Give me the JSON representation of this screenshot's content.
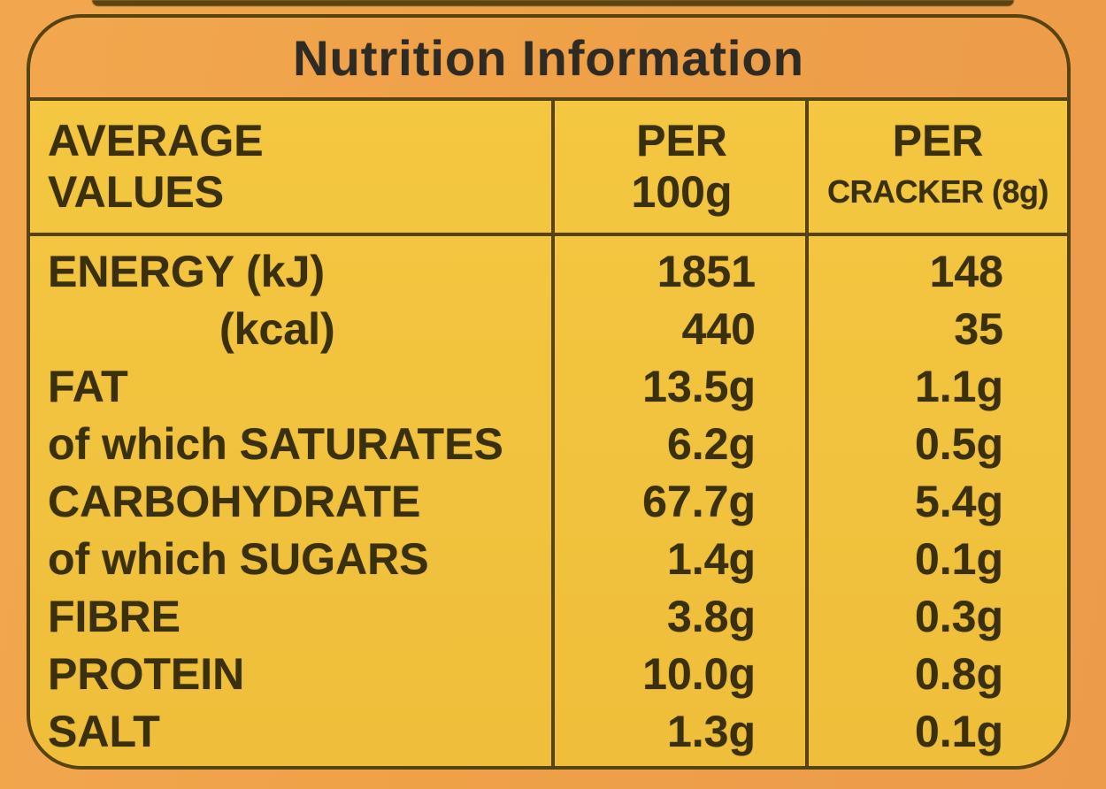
{
  "colors": {
    "background_orange": "#efa148",
    "panel_yellow": "#f2c33f",
    "rule_dark_olive": "#57430f",
    "table_text": "#3a300e",
    "title_text": "#2e2a24"
  },
  "label": {
    "title": "Nutrition Information",
    "table": {
      "header": {
        "values_line1": "AVERAGE",
        "values_line2": "VALUES",
        "per100_line1": "PER",
        "per100_line2": "100g",
        "percracker_line1": "PER",
        "percracker_line2": "CRACKER (8g)"
      },
      "rows": [
        {
          "label": "ENERGY (kJ)",
          "per_100g": "1851",
          "per_cracker": "148",
          "indent": false
        },
        {
          "label": "(kcal)",
          "per_100g": "440",
          "per_cracker": "35",
          "indent": true
        },
        {
          "label": "FAT",
          "per_100g": "13.5g",
          "per_cracker": "1.1g",
          "indent": false
        },
        {
          "label": "of which SATURATES",
          "per_100g": "6.2g",
          "per_cracker": "0.5g",
          "indent": false
        },
        {
          "label": "CARBOHYDRATE",
          "per_100g": "67.7g",
          "per_cracker": "5.4g",
          "indent": false
        },
        {
          "label": "of which SUGARS",
          "per_100g": "1.4g",
          "per_cracker": "0.1g",
          "indent": false
        },
        {
          "label": "FIBRE",
          "per_100g": "3.8g",
          "per_cracker": "0.3g",
          "indent": false
        },
        {
          "label": "PROTEIN",
          "per_100g": "10.0g",
          "per_cracker": "0.8g",
          "indent": false
        },
        {
          "label": "SALT",
          "per_100g": "1.3g",
          "per_cracker": "0.1g",
          "indent": false
        }
      ]
    }
  }
}
